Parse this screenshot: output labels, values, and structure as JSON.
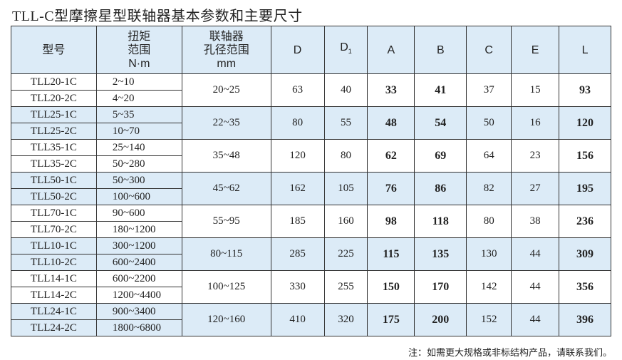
{
  "title": "TLL-C型摩擦星型联轴器基本参数和主要尺寸",
  "headers": {
    "model": "型号",
    "torque": [
      "扭矩",
      "范围",
      "N·m"
    ],
    "bore": [
      "联轴器",
      "孔径范围",
      "mm"
    ],
    "D": "D",
    "D1": "D",
    "D1_sub": "1",
    "A": "A",
    "B": "B",
    "C": "C",
    "E": "E",
    "L": "L"
  },
  "colors": {
    "header_bg": "#dcebf7",
    "row_alt_bg": "#dcebf7"
  },
  "groups": [
    {
      "models": [
        "TLL20-1C",
        "TLL20-2C"
      ],
      "torque": [
        "2~10",
        "4~20"
      ],
      "bore": "20~25",
      "D": "63",
      "D1": "40",
      "A": "33",
      "B": "41",
      "C": "37",
      "E": "15",
      "L": "93"
    },
    {
      "models": [
        "TLL25-1C",
        "TLL25-2C"
      ],
      "torque": [
        "5~35",
        "10~70"
      ],
      "bore": "22~35",
      "D": "80",
      "D1": "55",
      "A": "48",
      "B": "54",
      "C": "50",
      "E": "16",
      "L": "120"
    },
    {
      "models": [
        "TLL35-1C",
        "TLL35-2C"
      ],
      "torque": [
        "25~140",
        "50~280"
      ],
      "bore": "35~48",
      "D": "120",
      "D1": "80",
      "A": "62",
      "B": "69",
      "C": "64",
      "E": "23",
      "L": "156"
    },
    {
      "models": [
        "TLL50-1C",
        "TLL50-2C"
      ],
      "torque": [
        "50~300",
        "100~600"
      ],
      "bore": "45~62",
      "D": "162",
      "D1": "105",
      "A": "76",
      "B": "86",
      "C": "82",
      "E": "27",
      "L": "195"
    },
    {
      "models": [
        "TLL70-1C",
        "TLL70-2C"
      ],
      "torque": [
        "90~600",
        "180~1200"
      ],
      "bore": "55~95",
      "D": "185",
      "D1": "160",
      "A": "98",
      "B": "118",
      "C": "80",
      "E": "38",
      "L": "236"
    },
    {
      "models": [
        "TLL10-1C",
        "TLL10-2C"
      ],
      "torque": [
        "300~1200",
        "600~2400"
      ],
      "bore": "80~115",
      "D": "285",
      "D1": "225",
      "A": "115",
      "B": "135",
      "C": "130",
      "E": "44",
      "L": "309"
    },
    {
      "models": [
        "TLL14-1C",
        "TLL14-2C"
      ],
      "torque": [
        "600~2200",
        "1200~4400"
      ],
      "bore": "100~125",
      "D": "330",
      "D1": "255",
      "A": "150",
      "B": "170",
      "C": "142",
      "E": "44",
      "L": "356"
    },
    {
      "models": [
        "TLL24-1C",
        "TLL24-2C"
      ],
      "torque": [
        "900~3400",
        "1800~6800"
      ],
      "bore": "120~160",
      "D": "410",
      "D1": "320",
      "A": "175",
      "B": "200",
      "C": "152",
      "E": "44",
      "L": "396"
    }
  ],
  "note": "注：如需更大规格或非标结构产品，请联系我们。"
}
